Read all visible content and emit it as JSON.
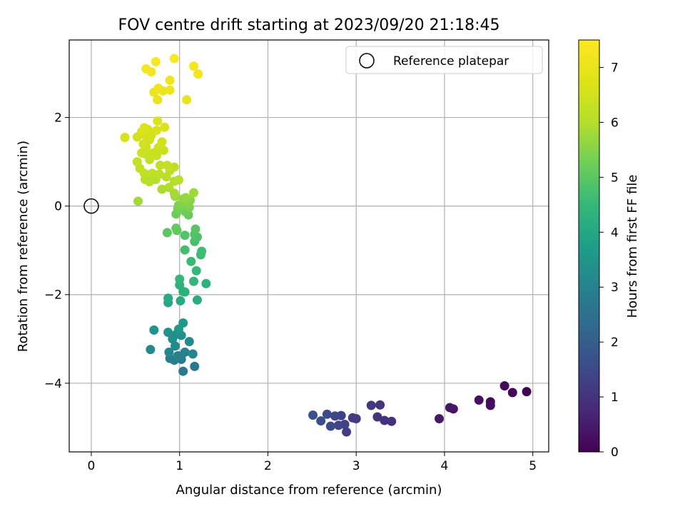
{
  "chart_data": {
    "type": "scatter",
    "title": "FOV centre drift starting at 2023/09/20 21:18:45",
    "xlabel": "Angular distance from reference (arcmin)",
    "ylabel": "Rotation from reference (arcmin)",
    "xlim": [
      -0.25,
      5.18
    ],
    "ylim": [
      -5.55,
      3.75
    ],
    "xticks": [
      0,
      1,
      2,
      3,
      4,
      5
    ],
    "xtick_labels": [
      "0",
      "1",
      "2",
      "3",
      "4",
      "5"
    ],
    "yticks": [
      -4,
      -2,
      0,
      2
    ],
    "ytick_labels": [
      "−4",
      "−2",
      "0",
      "2"
    ],
    "grid": true,
    "legend": {
      "placement": "top-right",
      "label": "Reference platepar"
    },
    "reference": {
      "x": 0,
      "y": 0
    },
    "colorbar": {
      "label": "Hours from first FF file",
      "range": [
        0,
        7.5
      ],
      "ticks": [
        0,
        1,
        2,
        3,
        4,
        5,
        6,
        7
      ],
      "tick_labels": [
        "0",
        "1",
        "2",
        "3",
        "4",
        "5",
        "6",
        "7"
      ],
      "colormap": "viridis"
    },
    "points": [
      [
        4.93,
        -4.19,
        0.05
      ],
      [
        4.77,
        -4.21,
        0.1
      ],
      [
        4.68,
        -4.06,
        0.15
      ],
      [
        4.52,
        -4.42,
        0.2
      ],
      [
        4.52,
        -4.5,
        0.25
      ],
      [
        4.39,
        -4.38,
        0.3
      ],
      [
        4.1,
        -4.58,
        0.35
      ],
      [
        4.06,
        -4.55,
        0.4
      ],
      [
        3.94,
        -4.8,
        0.45
      ],
      [
        3.4,
        -4.86,
        0.9
      ],
      [
        3.32,
        -4.84,
        0.95
      ],
      [
        3.27,
        -4.49,
        1.0
      ],
      [
        3.24,
        -4.76,
        1.05
      ],
      [
        3.17,
        -4.5,
        1.1
      ],
      [
        3.0,
        -4.8,
        1.15
      ],
      [
        2.96,
        -4.78,
        1.2
      ],
      [
        2.89,
        -5.1,
        1.25
      ],
      [
        2.87,
        -4.93,
        1.3
      ],
      [
        2.83,
        -4.73,
        1.35
      ],
      [
        2.8,
        -4.95,
        1.4
      ],
      [
        2.76,
        -4.74,
        1.45
      ],
      [
        2.71,
        -4.97,
        1.5
      ],
      [
        2.67,
        -4.7,
        1.55
      ],
      [
        2.6,
        -4.85,
        1.6
      ],
      [
        2.51,
        -4.72,
        1.65
      ],
      [
        1.17,
        -3.62,
        2.7
      ],
      [
        1.04,
        -3.73,
        2.75
      ],
      [
        1.02,
        -3.46,
        2.8
      ],
      [
        0.94,
        -3.48,
        2.85
      ],
      [
        0.89,
        -3.44,
        2.9
      ],
      [
        0.98,
        -3.38,
        2.95
      ],
      [
        1.06,
        -3.3,
        3.0
      ],
      [
        1.15,
        -3.34,
        3.05
      ],
      [
        0.88,
        -3.3,
        3.1
      ],
      [
        0.95,
        -3.16,
        3.15
      ],
      [
        0.67,
        -3.24,
        3.2
      ],
      [
        1.11,
        -3.06,
        3.25
      ],
      [
        0.92,
        -3.0,
        3.3
      ],
      [
        0.96,
        -2.9,
        3.35
      ],
      [
        1.02,
        -2.92,
        3.4
      ],
      [
        0.87,
        -2.85,
        3.45
      ],
      [
        0.71,
        -2.8,
        3.5
      ],
      [
        0.99,
        -2.78,
        3.55
      ],
      [
        1.04,
        -2.64,
        3.6
      ],
      [
        0.87,
        -2.18,
        4.0
      ],
      [
        0.87,
        -2.08,
        4.05
      ],
      [
        1.01,
        -2.14,
        4.1
      ],
      [
        1.2,
        -2.12,
        4.15
      ],
      [
        1.04,
        -1.93,
        4.2
      ],
      [
        1.06,
        -1.94,
        4.25
      ],
      [
        1.0,
        -1.78,
        4.3
      ],
      [
        1.3,
        -1.75,
        4.35
      ],
      [
        1.16,
        -1.7,
        4.4
      ],
      [
        1.0,
        -1.65,
        4.45
      ],
      [
        1.19,
        -1.46,
        4.5
      ],
      [
        1.13,
        -1.25,
        4.55
      ],
      [
        1.24,
        -1.1,
        4.6
      ],
      [
        1.25,
        -1.02,
        4.65
      ],
      [
        1.06,
        -0.99,
        4.7
      ],
      [
        1.17,
        -0.8,
        4.75
      ],
      [
        1.2,
        -0.7,
        4.8
      ],
      [
        1.17,
        -0.64,
        4.85
      ],
      [
        1.06,
        -0.66,
        4.9
      ],
      [
        1.18,
        -0.52,
        4.95
      ],
      [
        0.86,
        -0.6,
        5.0
      ],
      [
        0.97,
        -0.55,
        5.05
      ],
      [
        0.96,
        -0.5,
        5.1
      ],
      [
        1.1,
        -0.2,
        5.15
      ],
      [
        0.96,
        -0.18,
        5.2
      ],
      [
        1.06,
        -0.12,
        5.25
      ],
      [
        0.98,
        -0.06,
        5.3
      ],
      [
        1.11,
        -0.03,
        5.35
      ],
      [
        0.99,
        0.02,
        5.4
      ],
      [
        1.02,
        0.04,
        5.45
      ],
      [
        1.1,
        0.04,
        5.5
      ],
      [
        1.12,
        0.13,
        5.55
      ],
      [
        1.04,
        0.16,
        5.6
      ],
      [
        1.07,
        0.19,
        5.65
      ],
      [
        0.95,
        0.22,
        5.7
      ],
      [
        1.16,
        0.3,
        5.75
      ],
      [
        0.53,
        0.11,
        5.8
      ],
      [
        0.94,
        0.29,
        5.85
      ],
      [
        0.8,
        0.38,
        5.9
      ],
      [
        0.88,
        0.42,
        5.95
      ],
      [
        0.94,
        0.56,
        6.0
      ],
      [
        0.99,
        0.59,
        6.02
      ],
      [
        0.73,
        0.6,
        6.04
      ],
      [
        0.61,
        0.6,
        6.06
      ],
      [
        0.66,
        0.55,
        6.08
      ],
      [
        0.85,
        0.66,
        6.1
      ],
      [
        0.77,
        0.72,
        6.12
      ],
      [
        0.69,
        0.74,
        6.14
      ],
      [
        0.89,
        0.8,
        6.16
      ],
      [
        0.94,
        0.88,
        6.18
      ],
      [
        0.78,
        0.92,
        6.2
      ],
      [
        0.6,
        0.74,
        6.22
      ],
      [
        0.55,
        0.85,
        6.24
      ],
      [
        0.52,
        1.0,
        6.26
      ],
      [
        0.86,
        0.92,
        6.28
      ],
      [
        0.66,
        1.05,
        6.3
      ],
      [
        0.74,
        1.14,
        6.32
      ],
      [
        0.61,
        1.18,
        6.34
      ],
      [
        0.7,
        1.2,
        6.36
      ],
      [
        0.82,
        1.26,
        6.38
      ],
      [
        0.57,
        1.2,
        6.4
      ],
      [
        0.62,
        1.33,
        6.42
      ],
      [
        0.76,
        1.32,
        6.44
      ],
      [
        0.59,
        1.4,
        6.46
      ],
      [
        0.66,
        1.5,
        6.48
      ],
      [
        0.8,
        1.45,
        6.5
      ],
      [
        0.52,
        1.56,
        6.52
      ],
      [
        0.61,
        1.6,
        6.54
      ],
      [
        0.68,
        1.6,
        6.56
      ],
      [
        0.38,
        1.55,
        6.58
      ],
      [
        0.57,
        1.68,
        6.6
      ],
      [
        0.64,
        1.73,
        6.62
      ],
      [
        0.74,
        1.71,
        6.64
      ],
      [
        0.83,
        1.78,
        6.66
      ],
      [
        0.6,
        1.77,
        6.68
      ],
      [
        0.75,
        1.92,
        6.72
      ],
      [
        0.75,
        2.4,
        7.0
      ],
      [
        1.08,
        2.4,
        7.02
      ],
      [
        0.71,
        2.57,
        7.05
      ],
      [
        0.81,
        2.6,
        7.08
      ],
      [
        0.89,
        2.62,
        7.1
      ],
      [
        0.76,
        2.66,
        7.12
      ],
      [
        0.89,
        2.84,
        7.15
      ],
      [
        1.21,
        2.98,
        7.2
      ],
      [
        0.68,
        3.03,
        7.25
      ],
      [
        0.62,
        3.1,
        7.28
      ],
      [
        1.16,
        3.16,
        7.32
      ],
      [
        0.73,
        3.26,
        7.36
      ],
      [
        0.94,
        3.33,
        7.42
      ]
    ]
  }
}
